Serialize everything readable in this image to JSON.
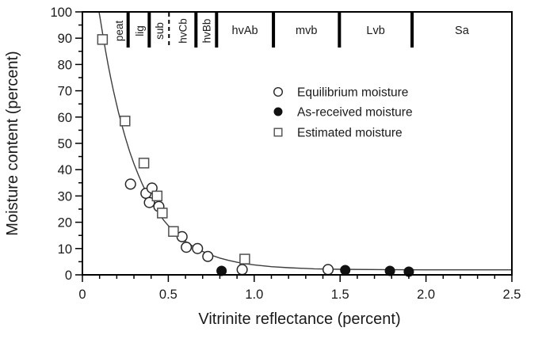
{
  "figure": {
    "background": "#ffffff",
    "text_color": "#1a1a1a",
    "frame_color": "#000000",
    "curve_color": "#3d3d3d",
    "circle_stroke": "#262626",
    "square_stroke": "#4f4f4f",
    "filled_fill": "#111111"
  },
  "chart_data": {
    "type": "scatter",
    "title": "",
    "xlabel": "Vitrinite reflectance (percent)",
    "ylabel": "Moisture content (percent)",
    "xlim": [
      0,
      2.5
    ],
    "ylim": [
      0,
      100
    ],
    "grid": false,
    "x_major_ticks": [
      0,
      0.5,
      1.0,
      1.5,
      2.0,
      2.5
    ],
    "x_tick_labels": [
      "0",
      "0.5",
      "1.0",
      "1.5",
      "2.0",
      "2.5"
    ],
    "x_minor_step": 0.1,
    "y_major_ticks": [
      0,
      10,
      20,
      30,
      40,
      50,
      60,
      70,
      80,
      90,
      100
    ],
    "y_tick_labels": [
      "0",
      "10",
      "20",
      "30",
      "40",
      "50",
      "60",
      "70",
      "80",
      "90",
      "100"
    ],
    "y_minor_step": 5,
    "legend": {
      "position": "inside-top-right",
      "entries": [
        {
          "label": "Equilibrium moisture",
          "marker": "open-circle"
        },
        {
          "label": "As-received moisture",
          "marker": "filled-circle"
        },
        {
          "label": "Estimated moisture",
          "marker": "open-square"
        }
      ]
    },
    "series": [
      {
        "name": "Equilibrium moisture",
        "marker": "open-circle",
        "points": [
          [
            0.28,
            34.5
          ],
          [
            0.37,
            31
          ],
          [
            0.405,
            33
          ],
          [
            0.39,
            27.5
          ],
          [
            0.445,
            26
          ],
          [
            0.58,
            14.5
          ],
          [
            0.605,
            10.5
          ],
          [
            0.67,
            10
          ],
          [
            0.73,
            7
          ],
          [
            0.93,
            2
          ],
          [
            1.43,
            2
          ]
        ]
      },
      {
        "name": "As-received moisture",
        "marker": "filled-circle",
        "points": [
          [
            0.81,
            1.5
          ],
          [
            1.53,
            1.8
          ],
          [
            1.79,
            1.5
          ],
          [
            1.9,
            1.2
          ]
        ]
      },
      {
        "name": "Estimated moisture",
        "marker": "open-square",
        "points": [
          [
            0.117,
            89.5
          ],
          [
            0.248,
            58.5
          ],
          [
            0.358,
            42.5
          ],
          [
            0.435,
            30
          ],
          [
            0.465,
            23.5
          ],
          [
            0.53,
            16.5
          ],
          [
            0.945,
            6
          ]
        ]
      }
    ],
    "fit_curve": {
      "description": "exponential decay trend line",
      "points": [
        [
          0.097,
          100
        ],
        [
          0.105,
          96.8
        ],
        [
          0.12,
          90.8
        ],
        [
          0.135,
          85.1
        ],
        [
          0.15,
          79.8
        ],
        [
          0.165,
          74.8
        ],
        [
          0.18,
          70.2
        ],
        [
          0.195,
          65.9
        ],
        [
          0.21,
          61.8
        ],
        [
          0.225,
          58.0
        ],
        [
          0.25,
          52.2
        ],
        [
          0.275,
          46.9
        ],
        [
          0.3,
          42.3
        ],
        [
          0.325,
          38.1
        ],
        [
          0.35,
          34.3
        ],
        [
          0.375,
          30.9
        ],
        [
          0.4,
          27.9
        ],
        [
          0.425,
          25.2
        ],
        [
          0.45,
          22.8
        ],
        [
          0.475,
          20.6
        ],
        [
          0.5,
          18.7
        ],
        [
          0.55,
          15.4
        ],
        [
          0.6,
          12.7
        ],
        [
          0.65,
          10.6
        ],
        [
          0.7,
          8.9
        ],
        [
          0.75,
          7.5
        ],
        [
          0.8,
          6.4
        ],
        [
          0.85,
          5.5
        ],
        [
          0.9,
          4.8
        ],
        [
          0.95,
          4.2
        ],
        [
          1.0,
          3.8
        ],
        [
          1.1,
          3.1
        ],
        [
          1.2,
          2.7
        ],
        [
          1.35,
          2.3
        ],
        [
          1.5,
          2.1
        ],
        [
          1.75,
          2.0
        ],
        [
          2.0,
          1.9
        ],
        [
          2.25,
          1.9
        ],
        [
          2.5,
          1.9
        ]
      ]
    },
    "rank_bands": {
      "dividers": [
        {
          "x": 0.266,
          "style": "solid"
        },
        {
          "x": 0.389,
          "style": "solid"
        },
        {
          "x": 0.504,
          "style": "dashed"
        },
        {
          "x": 0.661,
          "style": "solid"
        },
        {
          "x": 0.781,
          "style": "solid"
        },
        {
          "x": 1.112,
          "style": "solid"
        },
        {
          "x": 1.496,
          "style": "solid"
        },
        {
          "x": 1.919,
          "style": "solid"
        }
      ],
      "labels": [
        {
          "text": "peat",
          "x": 0.212,
          "rotated": true
        },
        {
          "text": "lig",
          "x": 0.331,
          "rotated": true
        },
        {
          "text": "sub",
          "x": 0.447,
          "rotated": true
        },
        {
          "text": "hvCb",
          "x": 0.583,
          "rotated": true
        },
        {
          "text": "hvBb",
          "x": 0.722,
          "rotated": true
        },
        {
          "text": "hvAb",
          "x": 0.946,
          "rotated": false
        },
        {
          "text": "mvb",
          "x": 1.304,
          "rotated": false
        },
        {
          "text": "Lvb",
          "x": 1.707,
          "rotated": false
        },
        {
          "text": "Sa",
          "x": 2.209,
          "rotated": false
        }
      ]
    }
  }
}
